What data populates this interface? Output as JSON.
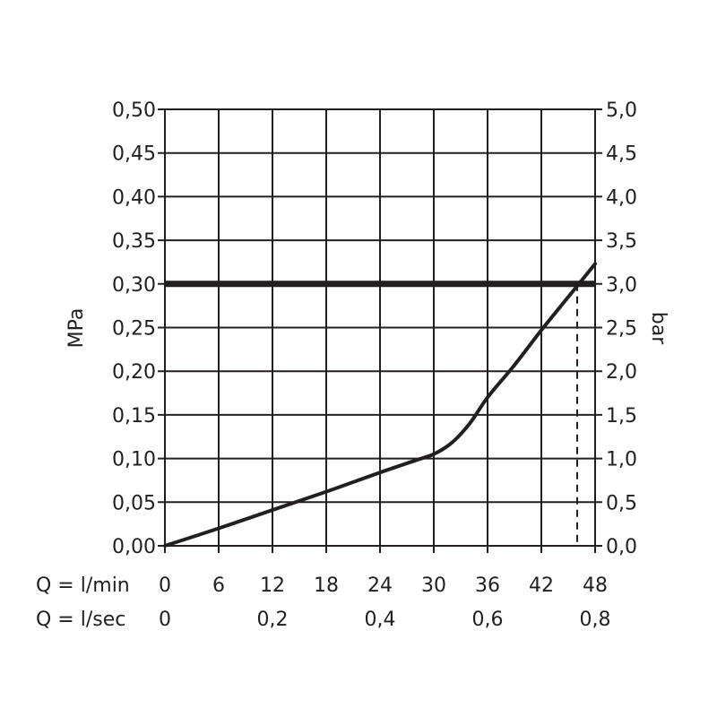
{
  "chart_data": {
    "type": "line",
    "title": "",
    "ylabel": "MPa",
    "y2label": "bar",
    "xlabel_rows": [
      {
        "label": "Q = l/min",
        "ticks": [
          "0",
          "6",
          "12",
          "18",
          "24",
          "30",
          "36",
          "42",
          "48"
        ],
        "values": [
          0,
          6,
          12,
          18,
          24,
          30,
          36,
          42,
          48
        ]
      },
      {
        "label": "Q = l/sec",
        "ticks": [
          "0",
          "0,2",
          "0,4",
          "0,6",
          "0,8"
        ],
        "values": [
          0,
          12,
          24,
          36,
          48
        ]
      }
    ],
    "xlim": [
      0,
      48
    ],
    "ylim": [
      0,
      0.5
    ],
    "yticks": [
      "0,00",
      "0,05",
      "0,10",
      "0,15",
      "0,20",
      "0,25",
      "0,30",
      "0,35",
      "0,40",
      "0,45",
      "0,50"
    ],
    "y2ticks": [
      "0,0",
      "0,5",
      "1,0",
      "1,5",
      "2,0",
      "2,5",
      "3,0",
      "3,5",
      "4,0",
      "4,5",
      "5,0"
    ],
    "grid": true,
    "reference_line": {
      "y": 0.3
    },
    "dashed_marker": {
      "x": 46,
      "y_top": 0.3
    },
    "series": [
      {
        "x": [
          0,
          6,
          12,
          18,
          24,
          28,
          30,
          32,
          34,
          36,
          39,
          42,
          45,
          48
        ],
        "y": [
          0,
          0.02,
          0.041,
          0.062,
          0.084,
          0.098,
          0.105,
          0.118,
          0.14,
          0.17,
          0.207,
          0.247,
          0.285,
          0.323
        ]
      }
    ],
    "color": "#231f20"
  }
}
